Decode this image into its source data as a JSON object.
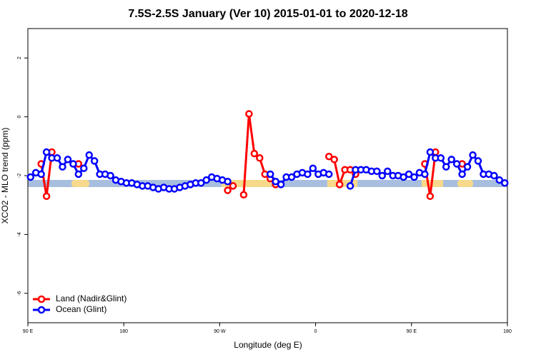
{
  "chart_data": {
    "type": "line",
    "title": "7.5S-2.5S January (Ver 10)   2015-01-01 to 2020-12-18",
    "x_label": "Longitude (deg E)",
    "y_label": "XCO2 - MLO trend (ppm)",
    "x": [
      92.5,
      97.5,
      102.5,
      107.5,
      112.5,
      117.5,
      122.5,
      127.5,
      132.5,
      137.5,
      142.5,
      147.5,
      152.5,
      157.5,
      162.5,
      167.5,
      172.5,
      177.5,
      182.5,
      187.5,
      192.5,
      197.5,
      202.5,
      207.5,
      212.5,
      217.5,
      222.5,
      227.5,
      232.5,
      237.5,
      242.5,
      247.5,
      252.5,
      257.5,
      262.5,
      267.5,
      272.5,
      277.5,
      282.5,
      287.5,
      292.5,
      297.5,
      302.5,
      307.5,
      312.5,
      317.5,
      322.5,
      327.5,
      332.5,
      337.5,
      342.5,
      347.5,
      352.5,
      357.5,
      362.5,
      367.5,
      372.5,
      377.5,
      382.5,
      387.5,
      392.5,
      397.5,
      402.5,
      407.5,
      412.5,
      417.5,
      422.5,
      427.5,
      432.5,
      437.5,
      442.5,
      447.5,
      452.5,
      457.5,
      462.5,
      467.5,
      472.5,
      477.5,
      482.5,
      487.5,
      492.5,
      497.5,
      502.5,
      507.5,
      512.5,
      517.5,
      522.5,
      527.5,
      532.5,
      537.5
    ],
    "series": [
      {
        "name": "Land (Nadir&Glint)",
        "color": "#ff0000",
        "values": [
          null,
          null,
          -1.6,
          -2.7,
          -1.2,
          null,
          null,
          null,
          null,
          -1.6,
          null,
          null,
          null,
          null,
          null,
          null,
          null,
          null,
          null,
          null,
          null,
          null,
          null,
          null,
          null,
          null,
          null,
          null,
          null,
          null,
          null,
          null,
          null,
          null,
          null,
          null,
          null,
          -2.5,
          -2.35,
          null,
          -2.65,
          0.1,
          -1.25,
          -1.4,
          -1.95,
          -2.1,
          -2.3,
          null,
          null,
          null,
          null,
          null,
          null,
          null,
          null,
          null,
          -1.35,
          -1.45,
          -2.3,
          -1.8,
          -1.8,
          -1.95,
          null,
          null,
          null,
          null,
          null,
          null,
          null,
          null,
          null,
          null,
          null,
          null,
          -1.6,
          -2.7,
          -1.2,
          null,
          null,
          null,
          null,
          -1.6,
          null,
          null,
          null,
          null,
          null,
          null,
          null,
          null
        ]
      },
      {
        "name": "Ocean (Glint)",
        "color": "#0000ff",
        "values": [
          -2.05,
          -1.9,
          -1.95,
          -1.2,
          -1.4,
          -1.4,
          -1.7,
          -1.45,
          -1.6,
          -1.95,
          -1.75,
          -1.3,
          -1.5,
          -1.95,
          -1.95,
          -2.0,
          -2.15,
          -2.2,
          -2.25,
          -2.25,
          -2.3,
          -2.35,
          -2.35,
          -2.4,
          -2.45,
          -2.4,
          -2.45,
          -2.45,
          -2.4,
          -2.35,
          -2.3,
          -2.25,
          -2.25,
          -2.15,
          -2.05,
          -2.1,
          -2.15,
          -2.2,
          null,
          null,
          null,
          null,
          null,
          null,
          null,
          -1.95,
          -2.2,
          -2.3,
          -2.05,
          -2.05,
          -1.95,
          -1.9,
          -1.95,
          -1.75,
          -1.95,
          -1.9,
          -1.95,
          null,
          null,
          null,
          -2.35,
          -1.8,
          -1.8,
          -1.8,
          -1.85,
          -1.85,
          -2.0,
          -1.85,
          -2.0,
          -2.0,
          -2.05,
          -1.95,
          -2.05,
          -1.9,
          -1.95,
          -1.2,
          -1.4,
          -1.4,
          -1.7,
          -1.45,
          -1.6,
          -1.95,
          -1.7,
          -1.3,
          -1.5,
          -1.95,
          -1.95,
          -2.0,
          -2.15,
          -2.25
        ]
      }
    ],
    "xlim": [
      90,
      540
    ],
    "xticks": [
      {
        "value": 90,
        "label": "90 E"
      },
      {
        "value": 180,
        "label": "180"
      },
      {
        "value": 270,
        "label": "90 W"
      },
      {
        "value": 360,
        "label": "0"
      },
      {
        "value": 450,
        "label": "90 E"
      },
      {
        "value": 540,
        "label": "180"
      }
    ],
    "ylim": [
      -7,
      3
    ],
    "yticks": [
      -6,
      -4,
      -2,
      0,
      2
    ],
    "legend": "bottom-left"
  }
}
